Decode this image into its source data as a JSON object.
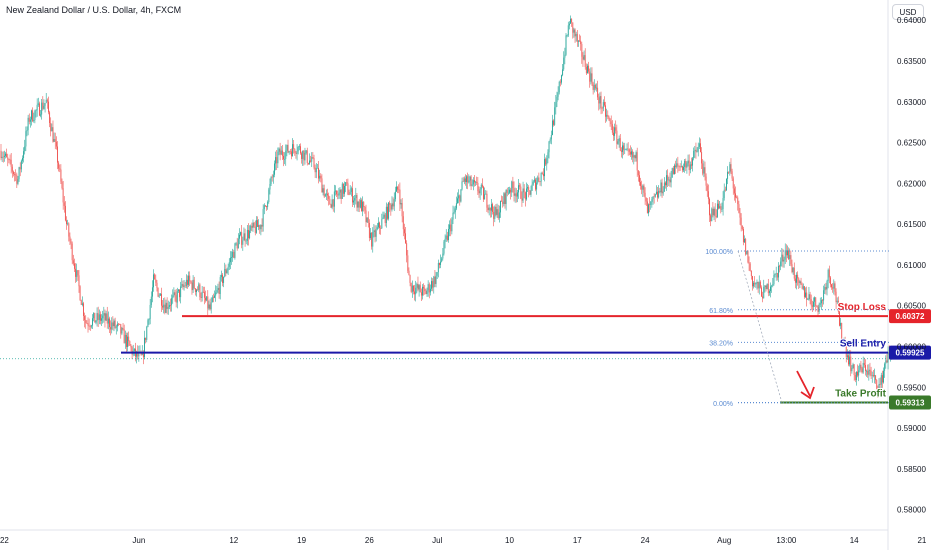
{
  "header": {
    "title": "New Zealand Dollar / U.S. Dollar, 4h, FXCM",
    "currency": "USD"
  },
  "colors": {
    "up": "#26a69a",
    "down": "#ef5350",
    "stop": "#e5242b",
    "entry": "#1a1aa8",
    "profit": "#3a7a2a",
    "fib": "#5b8bd1",
    "arrow": "#e5242b"
  },
  "chart_data": {
    "type": "candlestick",
    "ylim": [
      0.5775,
      0.6415
    ],
    "y_ticks": [
      0.64,
      0.635,
      0.63,
      0.625,
      0.62,
      0.615,
      0.61,
      0.605,
      0.6,
      0.595,
      0.59,
      0.585,
      0.58
    ],
    "y_tick_labels": [
      "0.64000",
      "0.63500",
      "0.63000",
      "0.62500",
      "0.62000",
      "0.61500",
      "0.61000",
      "0.60500",
      "0.60000",
      "0.59500",
      "0.59000",
      "0.58500",
      "0.58000"
    ],
    "x_ticks": [
      {
        "label": "22",
        "bar": 3
      },
      {
        "label": "Jun",
        "bar": 122
      },
      {
        "label": "12",
        "bar": 206
      },
      {
        "label": "19",
        "bar": 266
      },
      {
        "label": "26",
        "bar": 326
      },
      {
        "label": "Jul",
        "bar": 386
      },
      {
        "label": "10",
        "bar": 450
      },
      {
        "label": "17",
        "bar": 510
      },
      {
        "label": "24",
        "bar": 570
      },
      {
        "label": "Aug",
        "bar": 640
      },
      {
        "label": "13:00",
        "bar": 695
      },
      {
        "label": "14",
        "bar": 755
      },
      {
        "label": "21",
        "bar": 815
      }
    ],
    "price_path": [
      [
        0,
        0.624
      ],
      [
        15,
        0.6205
      ],
      [
        25,
        0.628
      ],
      [
        40,
        0.63
      ],
      [
        50,
        0.623
      ],
      [
        58,
        0.615
      ],
      [
        65,
        0.61
      ],
      [
        75,
        0.603
      ],
      [
        90,
        0.6035
      ],
      [
        105,
        0.602
      ],
      [
        118,
        0.599
      ],
      [
        125,
        0.5985
      ],
      [
        135,
        0.608
      ],
      [
        145,
        0.605
      ],
      [
        155,
        0.606
      ],
      [
        165,
        0.608
      ],
      [
        175,
        0.607
      ],
      [
        185,
        0.6045
      ],
      [
        195,
        0.608
      ],
      [
        210,
        0.613
      ],
      [
        230,
        0.615
      ],
      [
        245,
        0.6235
      ],
      [
        262,
        0.6245
      ],
      [
        278,
        0.622
      ],
      [
        290,
        0.6175
      ],
      [
        305,
        0.6195
      ],
      [
        320,
        0.617
      ],
      [
        328,
        0.613
      ],
      [
        342,
        0.6165
      ],
      [
        352,
        0.6195
      ],
      [
        362,
        0.6075
      ],
      [
        375,
        0.6065
      ],
      [
        385,
        0.6085
      ],
      [
        395,
        0.6135
      ],
      [
        410,
        0.6205
      ],
      [
        425,
        0.619
      ],
      [
        438,
        0.616
      ],
      [
        450,
        0.6195
      ],
      [
        465,
        0.6185
      ],
      [
        480,
        0.6215
      ],
      [
        492,
        0.63
      ],
      [
        503,
        0.64
      ],
      [
        515,
        0.6355
      ],
      [
        530,
        0.63
      ],
      [
        540,
        0.627
      ],
      [
        552,
        0.6235
      ],
      [
        562,
        0.623
      ],
      [
        572,
        0.6165
      ],
      [
        585,
        0.6195
      ],
      [
        598,
        0.622
      ],
      [
        610,
        0.6225
      ],
      [
        618,
        0.6245
      ],
      [
        628,
        0.616
      ],
      [
        638,
        0.6175
      ],
      [
        645,
        0.622
      ],
      [
        655,
        0.6145
      ],
      [
        665,
        0.608
      ],
      [
        675,
        0.6065
      ],
      [
        685,
        0.6085
      ],
      [
        695,
        0.612
      ],
      [
        705,
        0.6075
      ],
      [
        712,
        0.6065
      ],
      [
        718,
        0.6055
      ],
      [
        725,
        0.605
      ],
      [
        732,
        0.609
      ],
      [
        738,
        0.607
      ],
      [
        742,
        0.6025
      ],
      [
        748,
        0.5995
      ],
      [
        755,
        0.5965
      ],
      [
        765,
        0.5975
      ],
      [
        772,
        0.596
      ],
      [
        778,
        0.595
      ],
      [
        783,
        0.5985
      ],
      [
        788,
        0.599
      ]
    ],
    "levels": [
      {
        "name": "Stop Loss",
        "label": "Stop Loss",
        "price": 0.60372,
        "price_label": "0.60372",
        "color": "#e5242b"
      },
      {
        "name": "Sell Entry",
        "label": "Sell Entry",
        "price": 0.59925,
        "price_label": "0.59925",
        "color": "#1a1aa8"
      },
      {
        "name": "Take Profit",
        "label": "Take Profit",
        "price": 0.59313,
        "price_label": "0.59313",
        "color": "#3a7a2a"
      }
    ],
    "fib_levels": [
      {
        "label": "100.00%",
        "price": 0.6117
      },
      {
        "label": "61.80%",
        "price": 0.6045
      },
      {
        "label": "38.20%",
        "price": 0.6005
      },
      {
        "label": "0.00%",
        "price": 0.5931
      }
    ],
    "current_price": 0.5985
  }
}
